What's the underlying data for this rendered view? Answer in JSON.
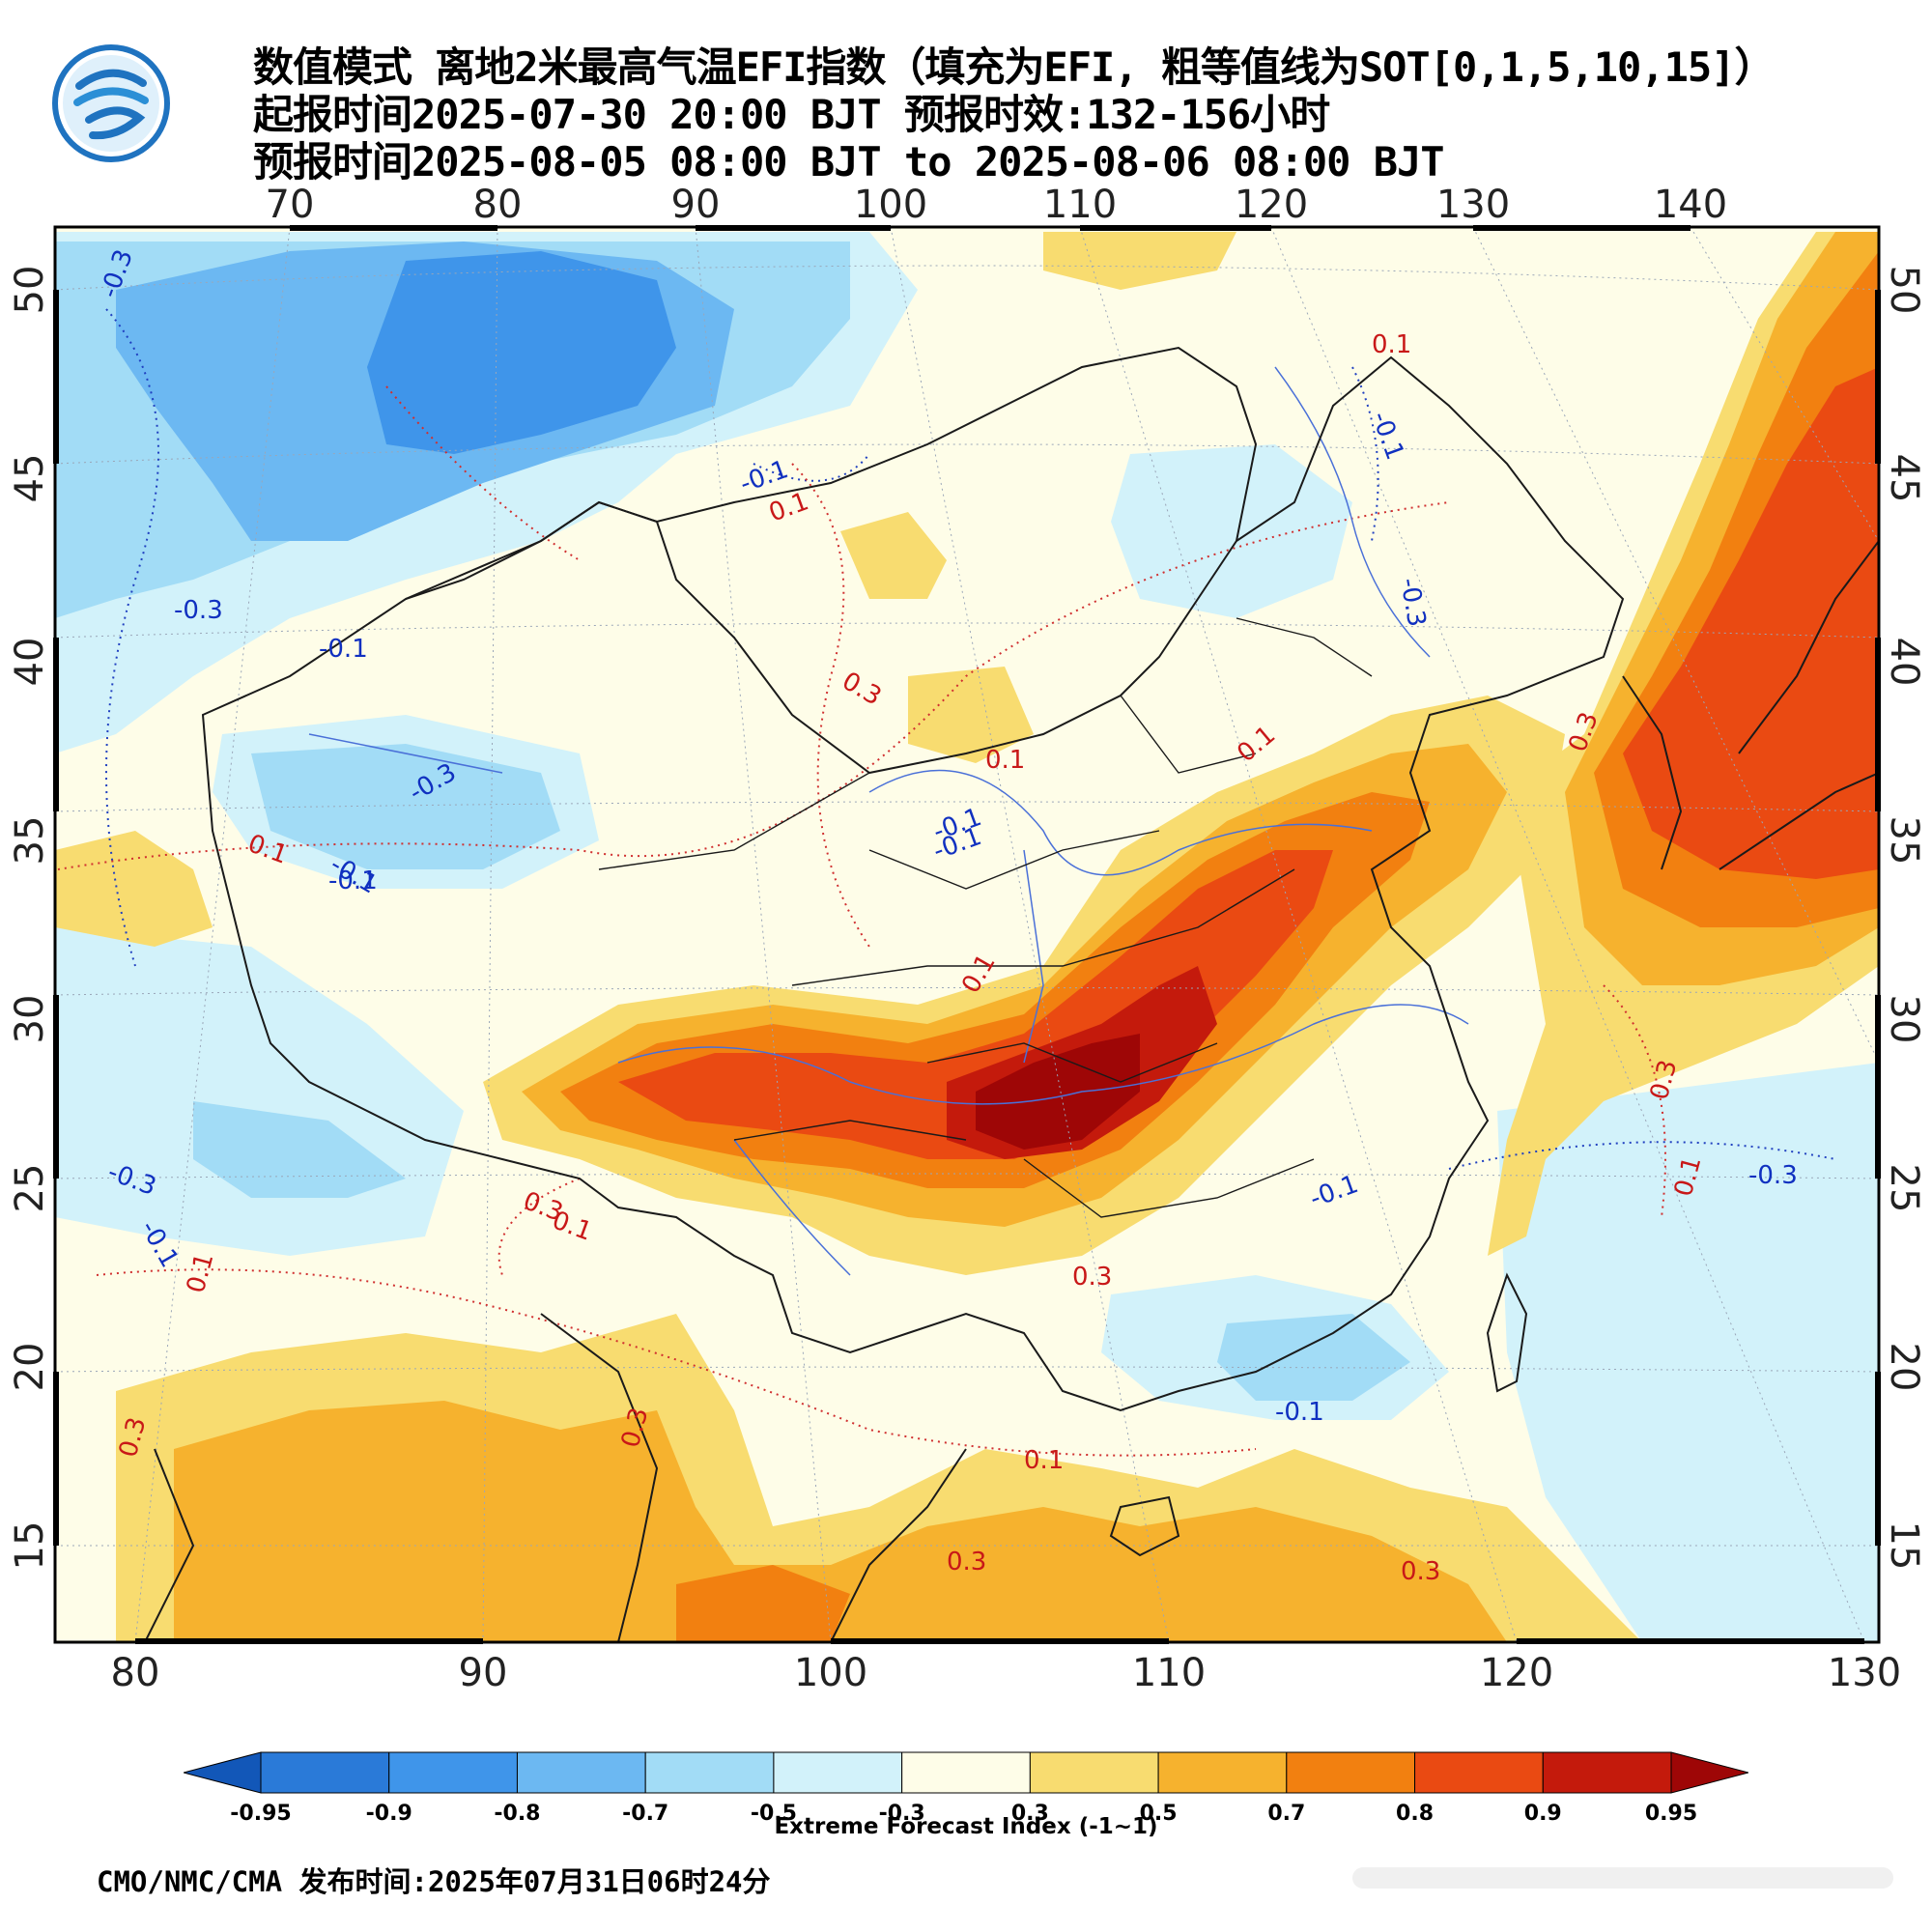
{
  "header": {
    "title": "数值模式 离地2米最高气温EFI指数（填充为EFI, 粗等值线为SOT[0,1,5,10,15]）",
    "init_time": "起报时间2025-07-30 20:00 BJT 预报时效:132-156小时",
    "valid_time": "预报时间2025-08-05 08:00 BJT to 2025-08-06 08:00 BJT"
  },
  "logo": {
    "icon": "cma-logo-icon"
  },
  "map": {
    "top_lon_labels": [
      "70",
      "80",
      "90",
      "100",
      "110",
      "120",
      "130",
      "140"
    ],
    "bottom_lon_labels": [
      "80",
      "90",
      "100",
      "110",
      "120",
      "130"
    ],
    "left_lat_labels": [
      "50",
      "45",
      "40",
      "35",
      "30",
      "25",
      "20",
      "15"
    ],
    "right_lat_labels": [
      "50",
      "45",
      "40",
      "35",
      "30",
      "25",
      "20",
      "15"
    ],
    "contour_labels_blue": [
      "-0.3",
      "-0.1",
      "-0.3",
      "-0.1",
      "-0.3",
      "-0.1",
      "-0.1",
      "-0.3",
      "-0.1",
      "-0.3",
      "-0.1",
      "-0.1",
      "-0.3",
      "-0.1",
      "-0.1",
      "-0.1"
    ],
    "contour_labels_red": [
      "0.1",
      "0.1",
      "0.3",
      "0.1",
      "0.1",
      "0.3",
      "0.1",
      "0.1",
      "0.1",
      "0.3",
      "0.3",
      "0.3",
      "0.1",
      "0.3",
      "0.3",
      "0.1",
      "0.3",
      "0.1",
      "0.3"
    ]
  },
  "colorbar": {
    "ticks": [
      "-0.95",
      "-0.9",
      "-0.8",
      "-0.7",
      "-0.5",
      "-0.3",
      "0.3",
      "0.5",
      "0.7",
      "0.8",
      "0.9",
      "0.95"
    ],
    "colors": [
      "#1257b8",
      "#2a7ad8",
      "#3f95ea",
      "#6cb8f2",
      "#a2dcf6",
      "#d2f2fa",
      "#fefde8",
      "#f8dc70",
      "#f6b22e",
      "#f28010",
      "#ea4a12",
      "#c41a0c",
      "#9e0606"
    ],
    "label": "Extreme Forecast Index (-1~1)"
  },
  "footer": {
    "text": "CMO/NMC/CMA 发布时间:2025年07月31日06时24分"
  }
}
